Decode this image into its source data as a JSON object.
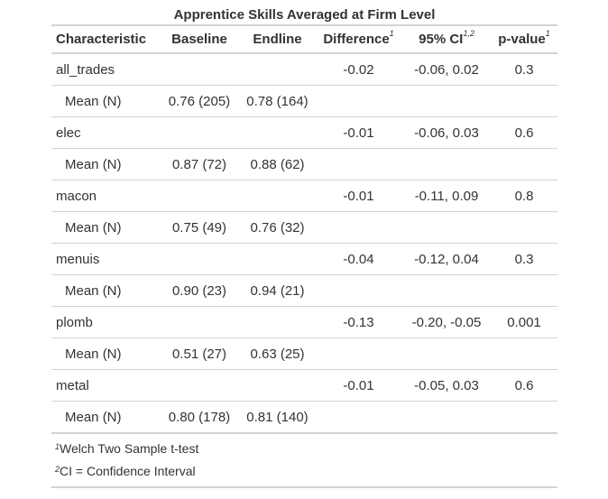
{
  "title": "Apprentice Skills Averaged at Firm Level",
  "headers": {
    "characteristic": "Characteristic",
    "baseline": "Baseline",
    "endline": "Endline",
    "difference": "Difference",
    "difference_sup": "1",
    "ci": "95% CI",
    "ci_sup": "1,2",
    "pvalue": "p-value",
    "pvalue_sup": "1"
  },
  "rows": [
    {
      "label": "all_trades",
      "baseline": "",
      "endline": "",
      "difference": "-0.02",
      "ci": "-0.06, 0.02",
      "pvalue": "0.3"
    },
    {
      "label": "Mean (N)",
      "baseline": "0.76 (205)",
      "endline": "0.78 (164)",
      "difference": "",
      "ci": "",
      "pvalue": ""
    },
    {
      "label": "elec",
      "baseline": "",
      "endline": "",
      "difference": "-0.01",
      "ci": "-0.06, 0.03",
      "pvalue": "0.6"
    },
    {
      "label": "Mean (N)",
      "baseline": "0.87 (72)",
      "endline": "0.88 (62)",
      "difference": "",
      "ci": "",
      "pvalue": ""
    },
    {
      "label": "macon",
      "baseline": "",
      "endline": "",
      "difference": "-0.01",
      "ci": "-0.11, 0.09",
      "pvalue": "0.8"
    },
    {
      "label": "Mean (N)",
      "baseline": "0.75 (49)",
      "endline": "0.76 (32)",
      "difference": "",
      "ci": "",
      "pvalue": ""
    },
    {
      "label": "menuis",
      "baseline": "",
      "endline": "",
      "difference": "-0.04",
      "ci": "-0.12, 0.04",
      "pvalue": "0.3"
    },
    {
      "label": "Mean (N)",
      "baseline": "0.90 (23)",
      "endline": "0.94 (21)",
      "difference": "",
      "ci": "",
      "pvalue": ""
    },
    {
      "label": "plomb",
      "baseline": "",
      "endline": "",
      "difference": "-0.13",
      "ci": "-0.20, -0.05",
      "pvalue": "0.001"
    },
    {
      "label": "Mean (N)",
      "baseline": "0.51 (27)",
      "endline": "0.63 (25)",
      "difference": "",
      "ci": "",
      "pvalue": ""
    },
    {
      "label": "metal",
      "baseline": "",
      "endline": "",
      "difference": "-0.01",
      "ci": "-0.05, 0.03",
      "pvalue": "0.6"
    },
    {
      "label": "Mean (N)",
      "baseline": "0.80 (178)",
      "endline": "0.81 (140)",
      "difference": "",
      "ci": "",
      "pvalue": ""
    }
  ],
  "footnotes": [
    {
      "mark": "1",
      "text": "Welch Two Sample t-test"
    },
    {
      "mark": "2",
      "text": "CI = Confidence Interval"
    }
  ],
  "colors": {
    "text": "#333333",
    "rule": "#d3d3d3",
    "background": "#ffffff"
  }
}
